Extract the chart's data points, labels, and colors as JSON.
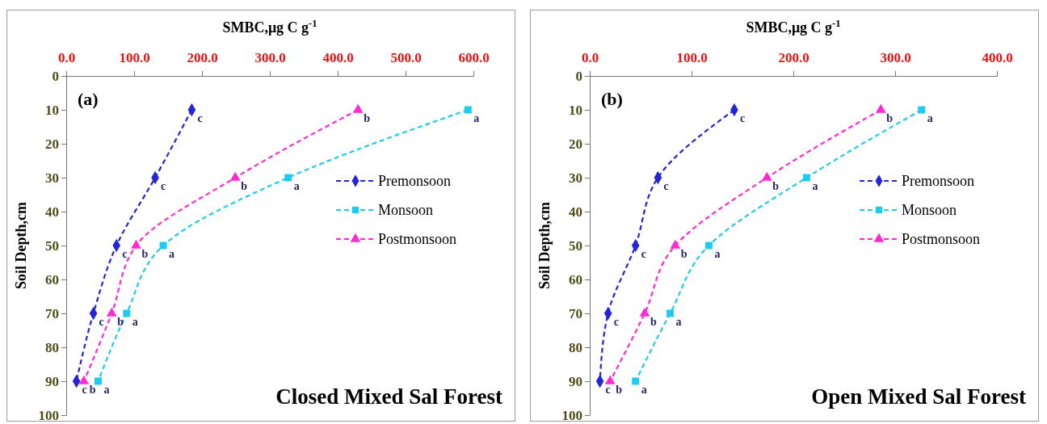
{
  "chart_data": [
    {
      "type": "line",
      "xlabel": "SMBC,μg C g$^{-1}$",
      "ylabel": "Soil Depth,cm",
      "xlim": [
        0,
        600
      ],
      "xticks": [
        {
          "value": 0,
          "label": "0.0"
        },
        {
          "value": 100,
          "label": "100.0"
        },
        {
          "value": 200,
          "label": "200.0"
        },
        {
          "value": 300,
          "label": "300.0"
        },
        {
          "value": 400,
          "label": "400.0"
        },
        {
          "value": 500,
          "label": "500.0"
        },
        {
          "value": 600,
          "label": "600.0"
        }
      ],
      "ylim": [
        100,
        0
      ],
      "yticks": [
        0,
        10,
        20,
        30,
        40,
        50,
        60,
        70,
        80,
        90,
        100
      ],
      "line_style": "dashed",
      "legend": "right",
      "grid": false,
      "series": [
        {
          "name": "Premonsoon",
          "color": "#2525d8",
          "marker": "diamond",
          "x": [
            185,
            131,
            74,
            40,
            15
          ],
          "values": [
            10,
            30,
            50,
            70,
            90
          ]
        },
        {
          "name": "Monsoon",
          "color": "#1ecbf0",
          "marker": "square",
          "x": [
            592,
            327,
            143,
            89,
            47
          ],
          "values": [
            10,
            30,
            50,
            70,
            90
          ]
        },
        {
          "name": "Postmonsoon",
          "color": "#ff2ad4",
          "marker": "triangle",
          "x": [
            430,
            249,
            103,
            67,
            26
          ],
          "values": [
            10,
            30,
            50,
            70,
            90
          ]
        }
      ],
      "annotations": [
        "(a)",
        "Closed Mixed Sal Forest",
        {
          "text": "c",
          "x": 185,
          "y": 10
        },
        {
          "text": "c",
          "x": 131,
          "y": 30
        },
        {
          "text": "c",
          "x": 74,
          "y": 50
        },
        {
          "text": "c",
          "x": 40,
          "y": 70
        },
        {
          "text": "c",
          "x": 15,
          "y": 90
        },
        {
          "text": "a",
          "x": 592,
          "y": 10
        },
        {
          "text": "a",
          "x": 327,
          "y": 30
        },
        {
          "text": "a",
          "x": 143,
          "y": 50
        },
        {
          "text": "a",
          "x": 89,
          "y": 70
        },
        {
          "text": "a",
          "x": 47,
          "y": 90
        },
        {
          "text": "b",
          "x": 430,
          "y": 10
        },
        {
          "text": "b",
          "x": 249,
          "y": 30
        },
        {
          "text": "b",
          "x": 103,
          "y": 50
        },
        {
          "text": "b",
          "x": 67,
          "y": 70
        },
        {
          "text": "b",
          "x": 26,
          "y": 90
        }
      ]
    },
    {
      "type": "line",
      "xlabel": "SMBC,μg C g$^{-1}$",
      "ylabel": "Soil Depth,cm",
      "xlim": [
        0,
        400
      ],
      "xticks": [
        {
          "value": 0,
          "label": "0.0"
        },
        {
          "value": 100,
          "label": "100.0"
        },
        {
          "value": 200,
          "label": "200.0"
        },
        {
          "value": 300,
          "label": "300.0"
        },
        {
          "value": 400,
          "label": "400.0"
        }
      ],
      "ylim": [
        100,
        0
      ],
      "yticks": [
        0,
        10,
        20,
        30,
        40,
        50,
        60,
        70,
        80,
        90,
        100
      ],
      "line_style": "dashed",
      "legend": "right",
      "grid": false,
      "series": [
        {
          "name": "Premonsoon",
          "color": "#2525d8",
          "marker": "diamond",
          "x": [
            142,
            67,
            45,
            18,
            10
          ],
          "values": [
            10,
            30,
            50,
            70,
            90
          ]
        },
        {
          "name": "Monsoon",
          "color": "#1ecbf0",
          "marker": "square",
          "x": [
            326,
            213,
            117,
            79,
            45
          ],
          "values": [
            10,
            30,
            50,
            70,
            90
          ]
        },
        {
          "name": "Postmonsoon",
          "color": "#ff2ad4",
          "marker": "triangle",
          "x": [
            286,
            174,
            84,
            54,
            20
          ],
          "values": [
            10,
            30,
            50,
            70,
            90
          ]
        }
      ],
      "annotations": [
        "(b)",
        "Open Mixed Sal Forest",
        {
          "text": "c",
          "x": 142,
          "y": 10
        },
        {
          "text": "c",
          "x": 67,
          "y": 30
        },
        {
          "text": "c",
          "x": 45,
          "y": 50
        },
        {
          "text": "c",
          "x": 18,
          "y": 70
        },
        {
          "text": "c",
          "x": 10,
          "y": 90
        },
        {
          "text": "a",
          "x": 326,
          "y": 10
        },
        {
          "text": "a",
          "x": 213,
          "y": 30
        },
        {
          "text": "a",
          "x": 117,
          "y": 50
        },
        {
          "text": "a",
          "x": 79,
          "y": 70
        },
        {
          "text": "a",
          "x": 45,
          "y": 90
        },
        {
          "text": "b",
          "x": 286,
          "y": 10
        },
        {
          "text": "b",
          "x": 174,
          "y": 30
        },
        {
          "text": "b",
          "x": 84,
          "y": 50
        },
        {
          "text": "b",
          "x": 54,
          "y": 70
        },
        {
          "text": "b",
          "x": 20,
          "y": 90
        }
      ]
    }
  ]
}
